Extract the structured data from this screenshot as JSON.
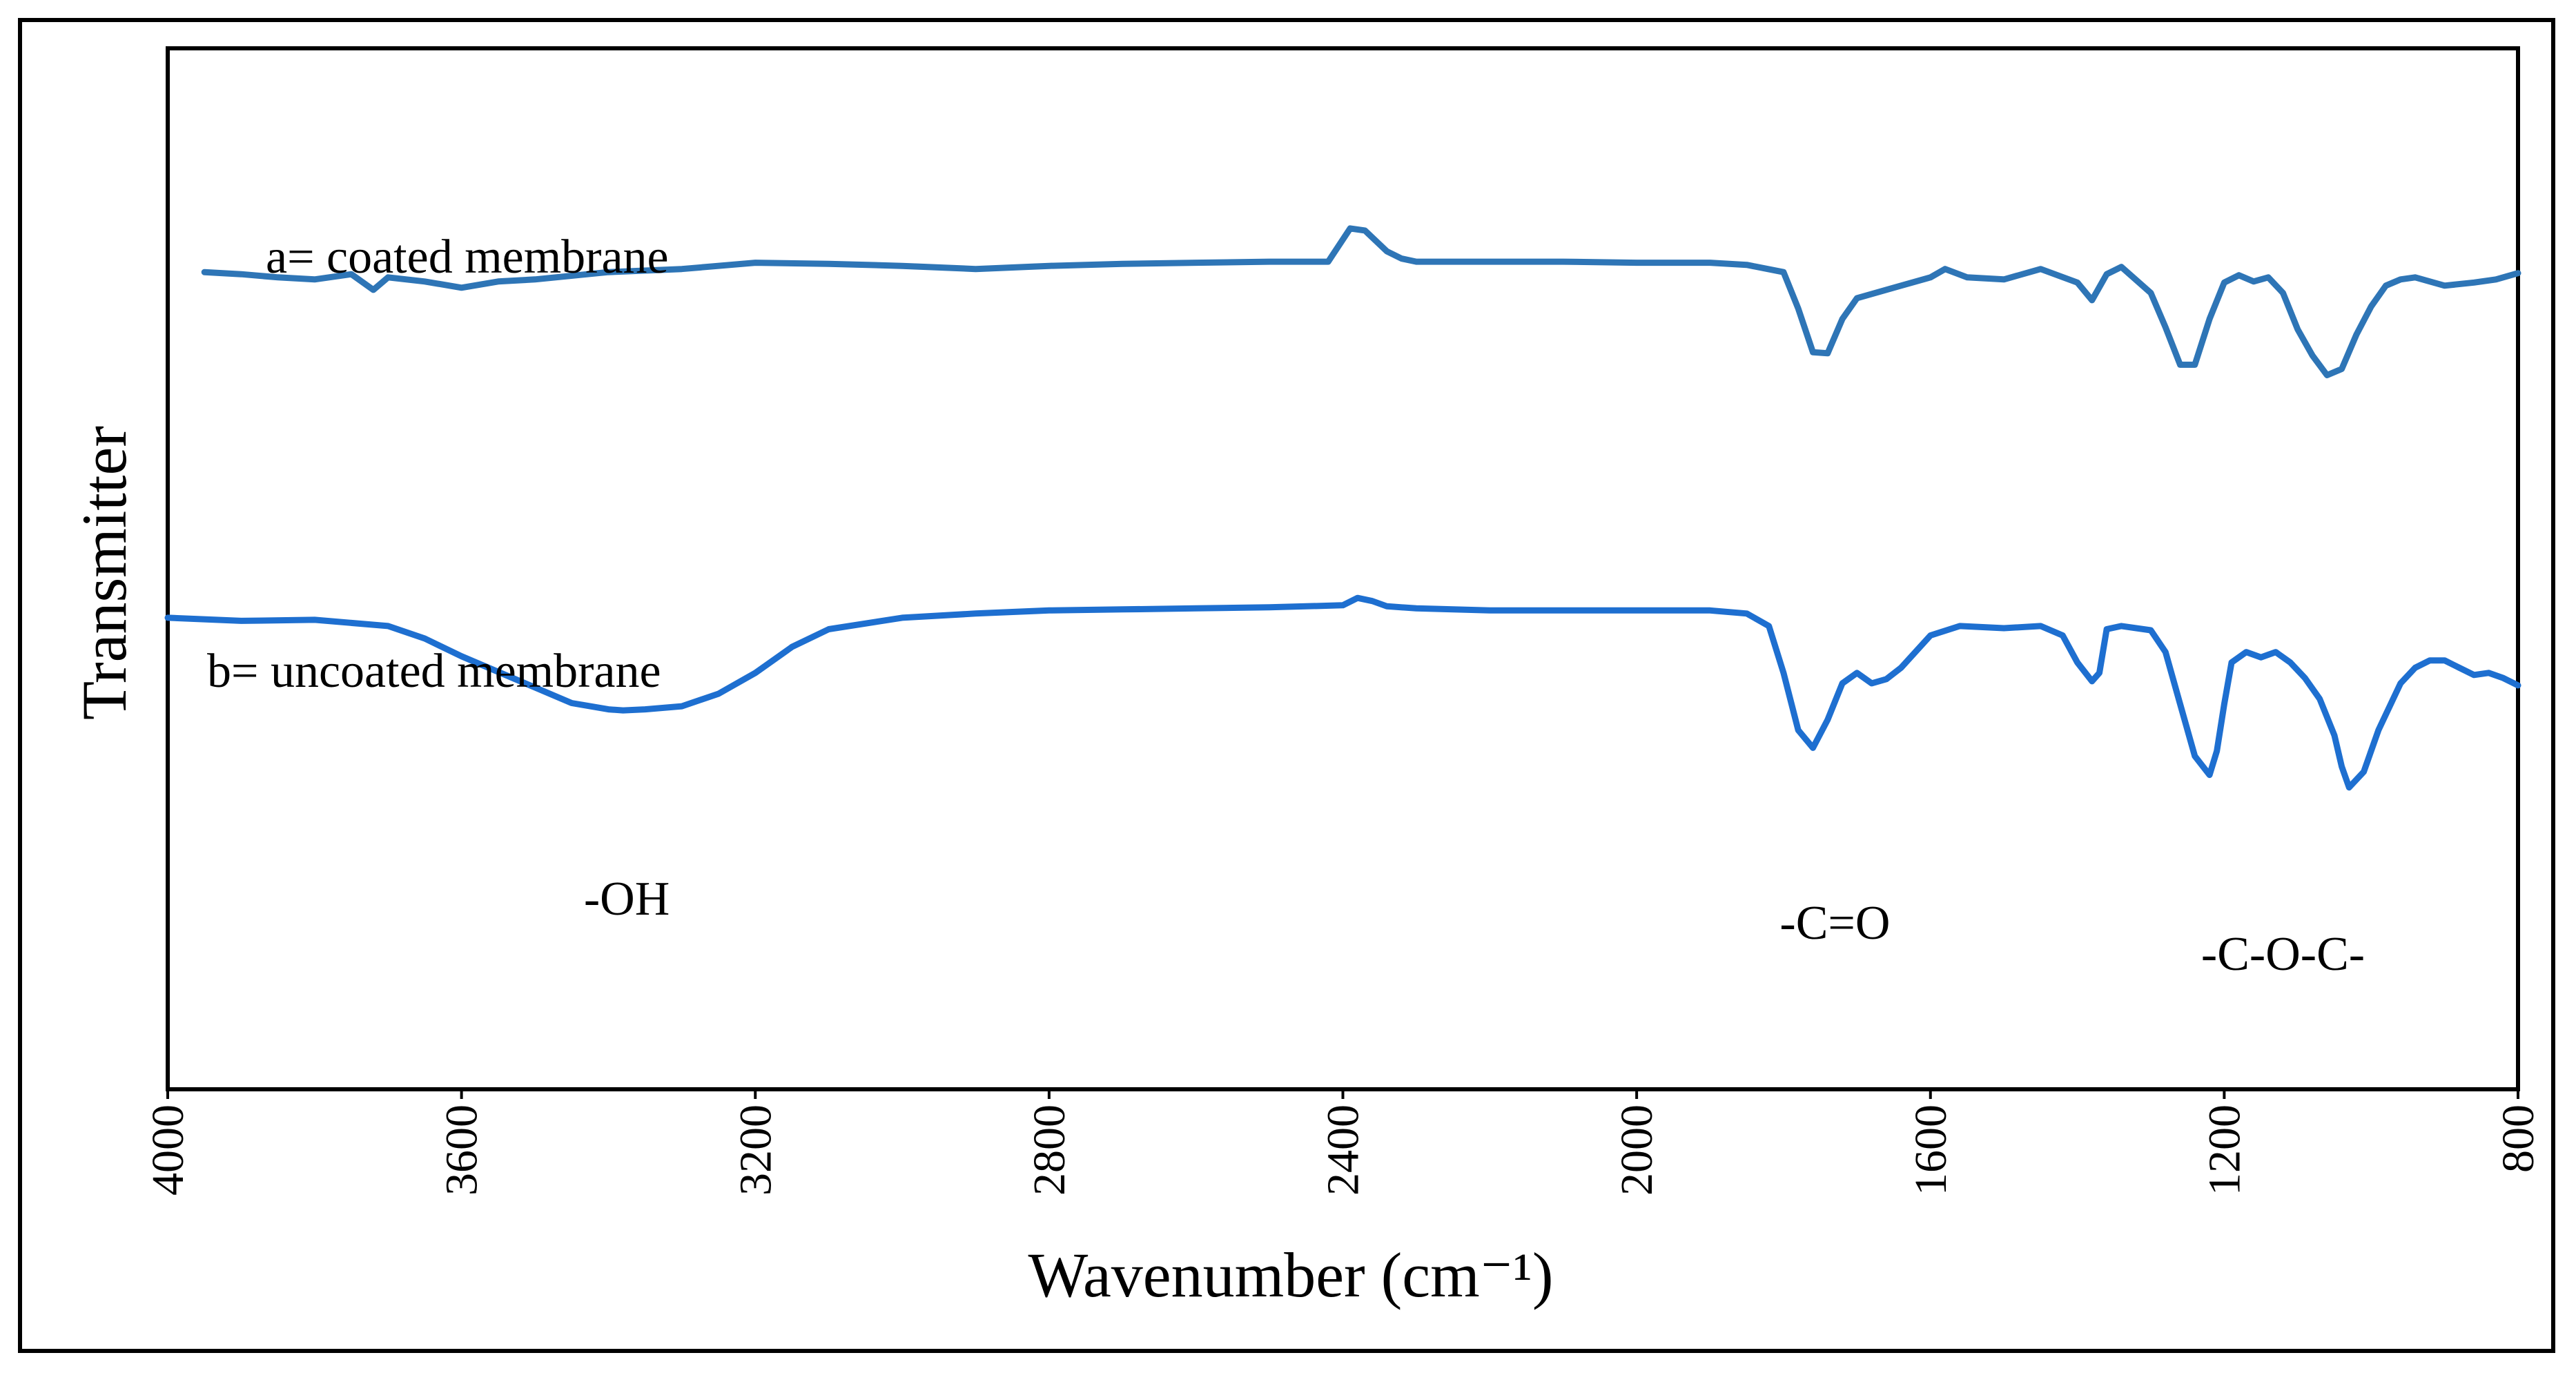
{
  "chart_data": {
    "type": "line",
    "title": "",
    "xlabel": "Wavenumber (cm⁻¹)",
    "ylabel": "Transmitter",
    "xlim": [
      4000,
      800
    ],
    "x_reversed": true,
    "ylim": [
      0,
      100
    ],
    "grid": false,
    "x_ticks": [
      "4000",
      "3600",
      "3200",
      "2800",
      "2400",
      "2000",
      "1600",
      "1200",
      "800"
    ],
    "x_tick_values": [
      4000,
      3600,
      3200,
      2800,
      2400,
      2000,
      1600,
      1200,
      800
    ],
    "series": [
      {
        "name": "a= coated membrane",
        "color": "#2e75b6",
        "x": [
          3950,
          3900,
          3850,
          3800,
          3750,
          3720,
          3700,
          3650,
          3600,
          3550,
          3500,
          3400,
          3300,
          3200,
          3100,
          3000,
          2900,
          2800,
          2700,
          2600,
          2500,
          2420,
          2390,
          2370,
          2340,
          2320,
          2300,
          2200,
          2100,
          2000,
          1900,
          1850,
          1800,
          1780,
          1760,
          1740,
          1720,
          1700,
          1650,
          1600,
          1580,
          1550,
          1500,
          1450,
          1400,
          1380,
          1360,
          1340,
          1300,
          1280,
          1260,
          1240,
          1220,
          1200,
          1180,
          1160,
          1140,
          1120,
          1100,
          1080,
          1060,
          1040,
          1020,
          1000,
          980,
          960,
          940,
          900,
          860,
          830,
          800
        ],
        "values": [
          78.5,
          78.3,
          78.0,
          77.8,
          78.3,
          76.8,
          78.0,
          77.6,
          77.0,
          77.6,
          77.8,
          78.5,
          78.8,
          79.4,
          79.3,
          79.1,
          78.8,
          79.1,
          79.3,
          79.4,
          79.5,
          79.5,
          82.7,
          82.5,
          80.5,
          79.8,
          79.5,
          79.5,
          79.5,
          79.4,
          79.4,
          79.2,
          78.5,
          75.0,
          70.8,
          70.7,
          74.0,
          76.0,
          77.0,
          78.0,
          78.8,
          78.0,
          77.8,
          78.8,
          77.5,
          75.8,
          78.3,
          79.0,
          76.5,
          73.2,
          69.6,
          69.6,
          74.0,
          77.5,
          78.2,
          77.6,
          78.0,
          76.5,
          73.0,
          70.5,
          68.6,
          69.2,
          72.5,
          75.2,
          77.2,
          77.8,
          78.0,
          77.2,
          77.5,
          77.8,
          78.4
        ]
      },
      {
        "name": "b= uncoated membrane",
        "color": "#1e6fd0",
        "x": [
          4000,
          3900,
          3800,
          3700,
          3650,
          3600,
          3550,
          3500,
          3450,
          3400,
          3380,
          3350,
          3300,
          3250,
          3200,
          3150,
          3100,
          3000,
          2900,
          2800,
          2700,
          2600,
          2500,
          2400,
          2380,
          2360,
          2340,
          2300,
          2200,
          2100,
          2000,
          1900,
          1850,
          1820,
          1800,
          1780,
          1760,
          1740,
          1720,
          1700,
          1680,
          1660,
          1640,
          1600,
          1560,
          1500,
          1450,
          1420,
          1400,
          1380,
          1370,
          1360,
          1340,
          1300,
          1280,
          1260,
          1240,
          1220,
          1210,
          1200,
          1190,
          1170,
          1150,
          1130,
          1110,
          1090,
          1070,
          1050,
          1040,
          1030,
          1010,
          990,
          960,
          940,
          920,
          900,
          880,
          860,
          840,
          820,
          800
        ],
        "values": [
          45.3,
          45.0,
          45.1,
          44.5,
          43.3,
          41.6,
          40.1,
          38.6,
          37.1,
          36.5,
          36.4,
          36.5,
          36.8,
          38.0,
          40.0,
          42.5,
          44.2,
          45.3,
          45.7,
          46.0,
          46.1,
          46.2,
          46.3,
          46.5,
          47.2,
          46.9,
          46.4,
          46.2,
          46.0,
          46.0,
          46.0,
          46.0,
          45.7,
          44.5,
          40.0,
          34.5,
          32.8,
          35.5,
          39.0,
          40.0,
          39.0,
          39.4,
          40.5,
          43.6,
          44.5,
          44.3,
          44.5,
          43.6,
          41.0,
          39.2,
          40.0,
          44.2,
          44.5,
          44.1,
          42.0,
          37.0,
          32.0,
          30.2,
          32.5,
          37.0,
          41.0,
          42.0,
          41.5,
          42.0,
          41.0,
          39.5,
          37.5,
          34.0,
          31.0,
          29.0,
          30.5,
          34.5,
          39.0,
          40.5,
          41.2,
          41.2,
          40.5,
          39.8,
          40.0,
          39.5,
          38.8
        ]
      }
    ],
    "legend": [
      "a= coated membrane",
      "b= uncoated membrane"
    ],
    "annotations": [
      {
        "text": "-OH",
        "x": 3375
      },
      {
        "text": "-C=O",
        "x": 1730
      },
      {
        "text": "-C-O-C-",
        "x": 1120
      }
    ]
  }
}
